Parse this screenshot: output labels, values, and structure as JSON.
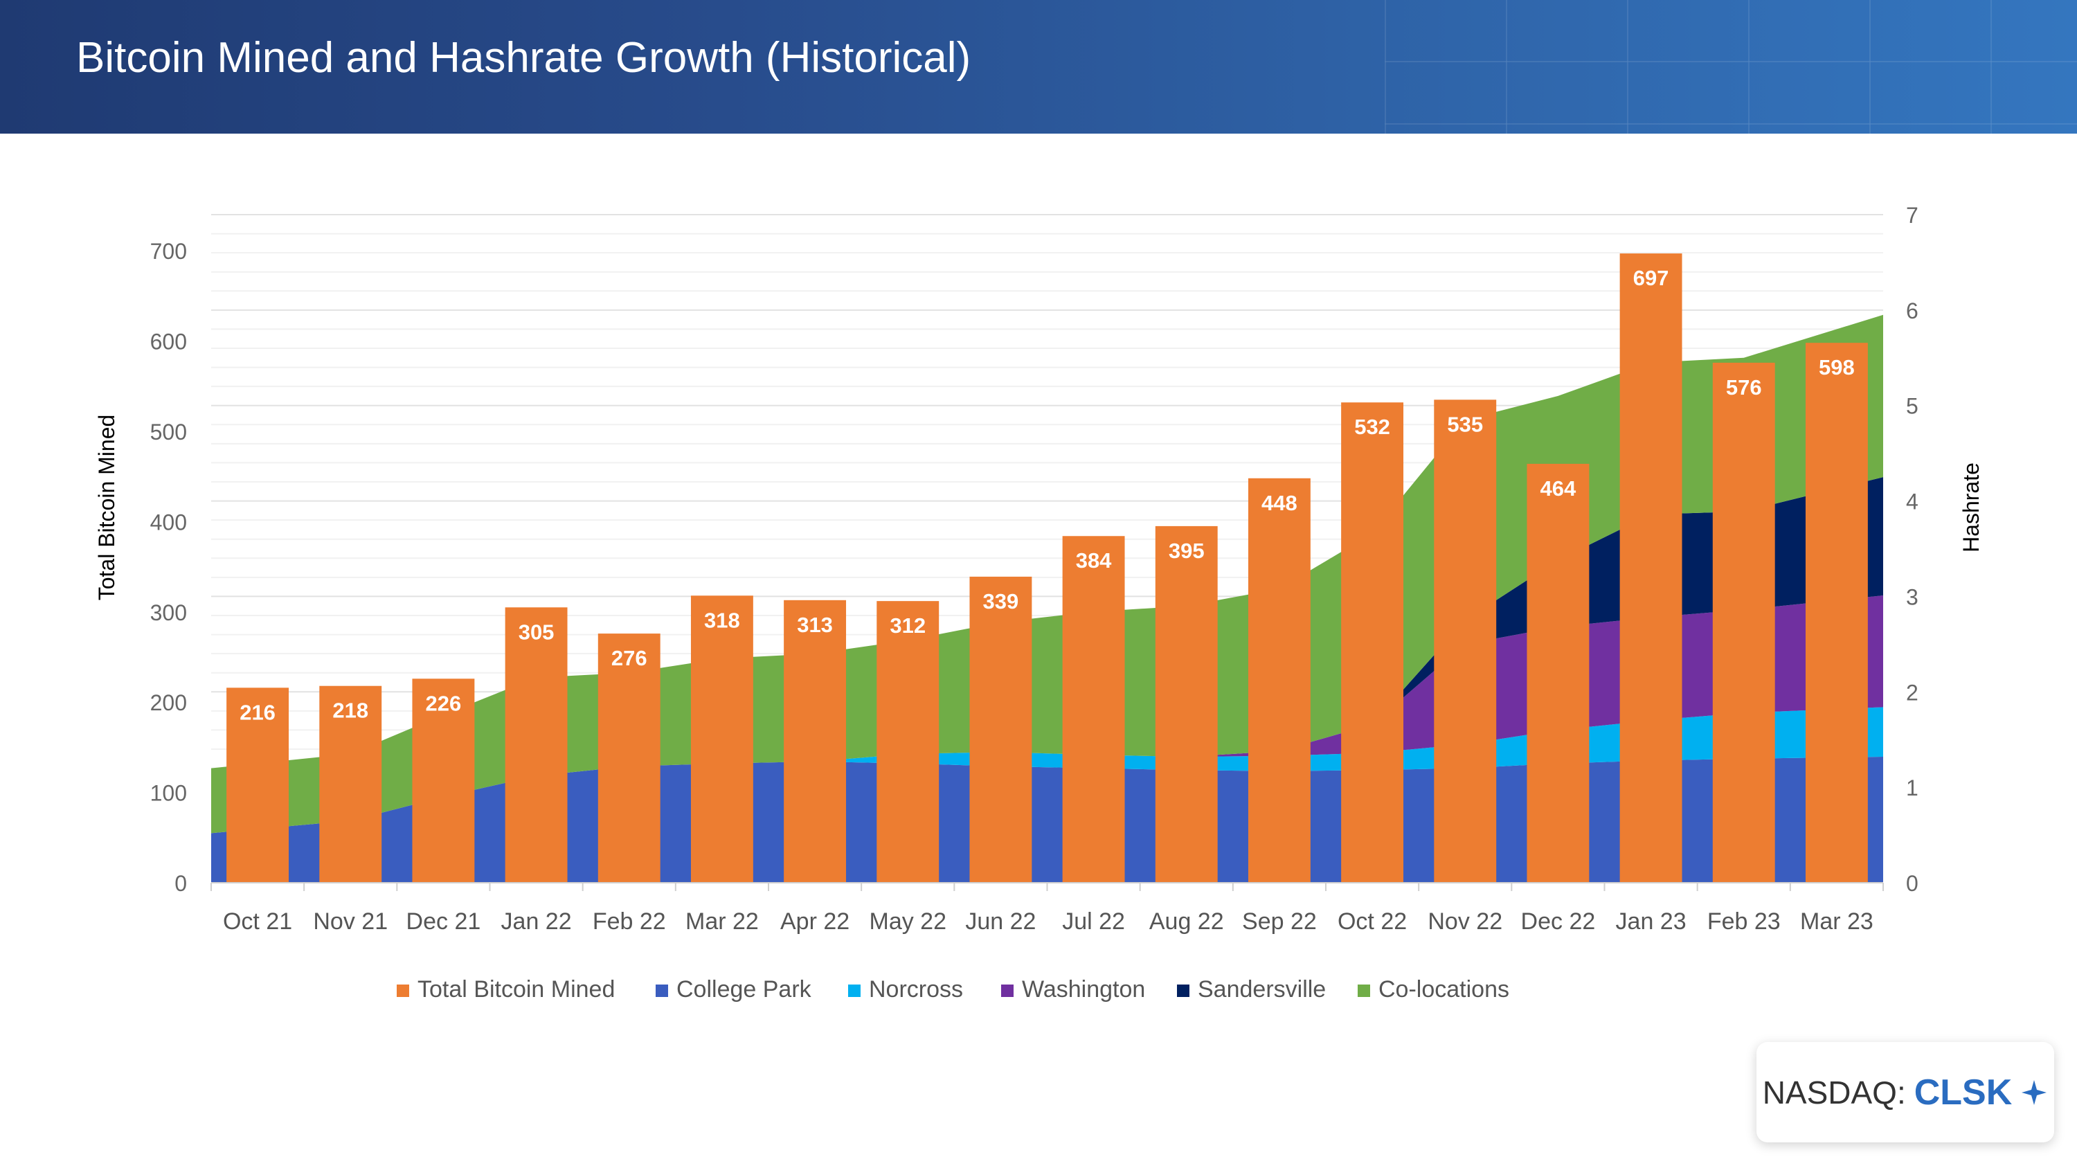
{
  "header": {
    "title": "Bitcoin Mined and Hashrate Growth (Historical)"
  },
  "badge": {
    "exchange": "NASDAQ:",
    "ticker": "CLSK",
    "icon": "sparkle-icon"
  },
  "colors": {
    "total_mined": "#ed7d31",
    "college_park": "#3a5dbf",
    "norcross": "#00b0f0",
    "washington": "#7030a0",
    "sandersville": "#002060",
    "co_locations": "#70ad47",
    "header_start": "#1f3a72",
    "header_end": "#3476bf"
  },
  "chart_data": {
    "type": "bar",
    "categories": [
      "Oct 21",
      "Nov 21",
      "Dec 21",
      "Jan 22",
      "Feb 22",
      "Mar 22",
      "Apr 22",
      "May 22",
      "Jun 22",
      "Jul 22",
      "Aug 22",
      "Sep 22",
      "Oct 22",
      "Nov 22",
      "Dec 22",
      "Jan 23",
      "Feb 23",
      "Mar 23"
    ],
    "ylabel": "Total Bitcoin Mined",
    "y2label": "Hashrate",
    "ylim": [
      0,
      740
    ],
    "y2lim": [
      0,
      7
    ],
    "yticks": [
      0,
      100,
      200,
      300,
      400,
      500,
      600,
      700
    ],
    "y2ticks": [
      0,
      1,
      2,
      3,
      4,
      5,
      6,
      7
    ],
    "grid": true,
    "legend_position": "bottom",
    "bars": {
      "name": "Total Bitcoin Mined",
      "values": [
        216,
        218,
        226,
        305,
        276,
        318,
        313,
        312,
        339,
        384,
        395,
        448,
        532,
        535,
        464,
        697,
        576,
        598
      ]
    },
    "stacked_area": [
      {
        "name": "College Park",
        "values": [
          0.52,
          0.65,
          0.9,
          1.12,
          1.22,
          1.25,
          1.27,
          1.25,
          1.22,
          1.2,
          1.18,
          1.17,
          1.18,
          1.2,
          1.25,
          1.28,
          1.3,
          1.32
        ]
      },
      {
        "name": "Norcross",
        "values": [
          0,
          0,
          0,
          0,
          0,
          0,
          0,
          0.1,
          0.15,
          0.14,
          0.14,
          0.16,
          0.18,
          0.25,
          0.35,
          0.42,
          0.48,
          0.52
        ]
      },
      {
        "name": "Washington",
        "values": [
          0,
          0,
          0,
          0,
          0,
          0,
          0,
          0,
          0,
          0,
          0,
          0.05,
          0.3,
          1.05,
          1.08,
          1.08,
          1.08,
          1.17
        ]
      },
      {
        "name": "Sandersville",
        "values": [
          0,
          0,
          0,
          0,
          0,
          0,
          0,
          0,
          0,
          0,
          0,
          0,
          0,
          0.25,
          0.7,
          1.08,
          1.03,
          1.24
        ]
      },
      {
        "name": "Co-locations",
        "values": [
          0.68,
          0.7,
          0.86,
          1.03,
          0.98,
          1.1,
          1.13,
          1.19,
          1.36,
          1.5,
          1.58,
          1.7,
          2.0,
          2.1,
          1.72,
          1.59,
          1.61,
          1.7
        ]
      }
    ]
  }
}
